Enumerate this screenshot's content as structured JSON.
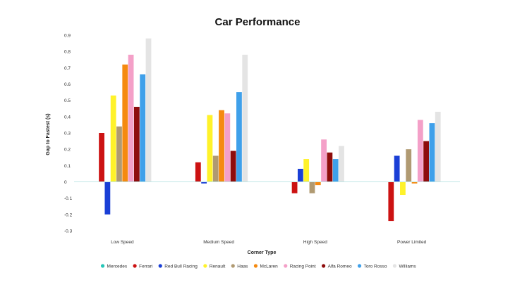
{
  "chart_data": {
    "type": "bar",
    "title": "Car Performance",
    "xlabel": "Corner Type",
    "ylabel": "Gap to Fastest (s)",
    "ylim": [
      -0.3,
      0.9
    ],
    "yticks": [
      0.9,
      0.8,
      0.7,
      0.6,
      0.5,
      0.4,
      0.3,
      0.2,
      0.1,
      0,
      -0.1,
      -0.2,
      -0.3
    ],
    "ytick_labels": [
      "0.9",
      "0.8",
      "0.7",
      "0.6",
      "0.5",
      "0.4",
      "0.3",
      "0.2",
      "0.1",
      "0",
      "-0.1",
      "-0.2",
      "-0.3"
    ],
    "grid": false,
    "legend_position": "bottom",
    "categories": [
      "Low Speed",
      "Medium Speed",
      "High Speed",
      "Power Limited"
    ],
    "series": [
      {
        "name": "Mercedes",
        "color": "#26c6b8",
        "values": [
          0,
          0,
          0,
          0
        ]
      },
      {
        "name": "Ferrari",
        "color": "#cc1212",
        "values": [
          0.3,
          0.12,
          -0.07,
          -0.24
        ]
      },
      {
        "name": "Red Bull Racing",
        "color": "#1a3fd6",
        "values": [
          -0.2,
          -0.01,
          0.08,
          0.16
        ]
      },
      {
        "name": "Renault",
        "color": "#fff22a",
        "values": [
          0.53,
          0.41,
          0.14,
          -0.08
        ]
      },
      {
        "name": "Haas",
        "color": "#b09a72",
        "values": [
          0.34,
          0.16,
          -0.07,
          0.2
        ]
      },
      {
        "name": "McLaren",
        "color": "#f58a10",
        "values": [
          0.72,
          0.44,
          -0.02,
          -0.01
        ]
      },
      {
        "name": "Racing Point",
        "color": "#f4a0c8",
        "values": [
          0.78,
          0.42,
          0.26,
          0.38
        ]
      },
      {
        "name": "Alfa Romeo",
        "color": "#8e0c0c",
        "values": [
          0.46,
          0.19,
          0.18,
          0.25
        ]
      },
      {
        "name": "Toro Rosso",
        "color": "#3fa0ea",
        "values": [
          0.66,
          0.55,
          0.14,
          0.36
        ]
      },
      {
        "name": "Williams",
        "color": "#e4e4e4",
        "values": [
          0.88,
          0.78,
          0.22,
          0.43
        ]
      }
    ]
  }
}
